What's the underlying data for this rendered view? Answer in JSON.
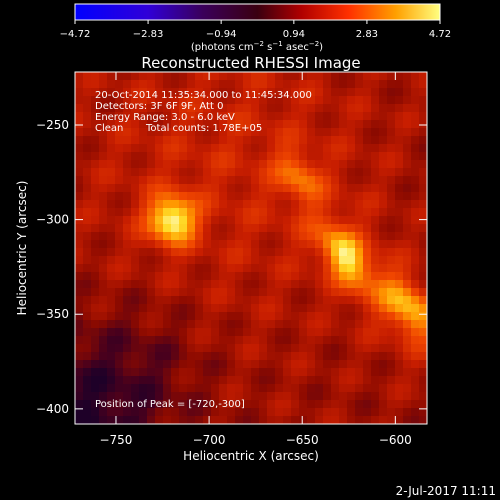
{
  "chart_data": {
    "type": "heatmap",
    "title": "Reconstructed RHESSI Image",
    "xlabel": "Heliocentric X (arcsec)",
    "ylabel": "Heliocentric Y (arcsec)",
    "xlim": [
      -772,
      -583
    ],
    "ylim": [
      -408,
      -222
    ],
    "x_ticks": [
      -750,
      -700,
      -650,
      -600
    ],
    "x_tick_labels": [
      "−750",
      "−700",
      "−650",
      "−600"
    ],
    "y_ticks": [
      -250,
      -300,
      -350,
      -400
    ],
    "y_tick_labels": [
      "−250",
      "−300",
      "−350",
      "−400"
    ],
    "colorbar": {
      "min": -4.72,
      "max": 4.72,
      "ticks": [
        -4.72,
        -2.83,
        -0.94,
        0.94,
        2.83,
        4.72
      ],
      "tick_labels": [
        "−4.72",
        "−2.83",
        "−0.94",
        "0.94",
        "2.83",
        "4.72"
      ],
      "units_main": "(photons cm",
      "units_sup1": "−2",
      "units_mid1": " s",
      "units_sup2": "−1",
      "units_mid2": " asec",
      "units_sup3": "−2",
      "units_end": ")"
    },
    "sources": [
      {
        "x": -720,
        "y": -300,
        "peak": 4.72
      },
      {
        "x": -627,
        "y": -320,
        "peak": 3.9
      },
      {
        "x": -652,
        "y": -277,
        "peak": 2.6
      },
      {
        "x": -592,
        "y": -347,
        "peak": 3.6
      }
    ]
  },
  "annotations": {
    "time_range": "20-Oct-2014 11:35:34.000 to 11:45:34.000",
    "detectors": "Detectors: 3F 6F 9F, Att 0",
    "energy_range": "Energy Range: 3.0 - 6.0 keV",
    "clean_label": "Clean",
    "total_counts": "Total counts: 1.78E+05",
    "peak_position": "Position of Peak = [-720,-300]"
  },
  "footer_date": "2-Jul-2017 11:11",
  "colors": {
    "background": "#000000",
    "text": "#ffffff"
  }
}
